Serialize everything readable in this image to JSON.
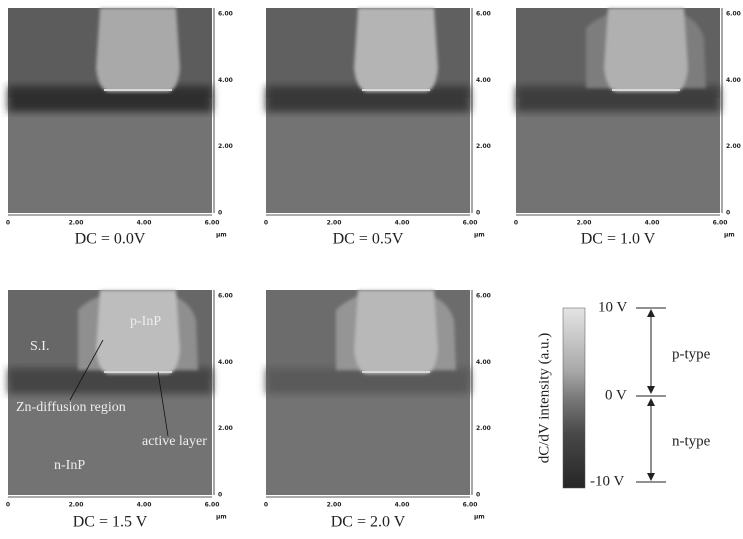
{
  "axis": {
    "xticks": [
      "0",
      "2.00",
      "4.00",
      "6.00"
    ],
    "yticks": [
      "0",
      "2.00",
      "4.00",
      "6.00"
    ],
    "unit": "μm"
  },
  "panels": [
    {
      "caption": "DC = 0.0V"
    },
    {
      "caption": "DC = 0.5V"
    },
    {
      "caption": "DC = 1.0 V"
    },
    {
      "caption": "DC = 1.5 V",
      "annotations": [
        "S.I.",
        "p-InP",
        "Zn-diffusion region",
        "active layer",
        "n-InP"
      ]
    },
    {
      "caption": "DC = 2.0 V"
    }
  ],
  "colorbar": {
    "label": "dC/dV intensity (a.u.)",
    "ticks": [
      "10 V",
      "0 V",
      "-10 V"
    ],
    "regions": [
      "p-type",
      "n-type"
    ]
  }
}
